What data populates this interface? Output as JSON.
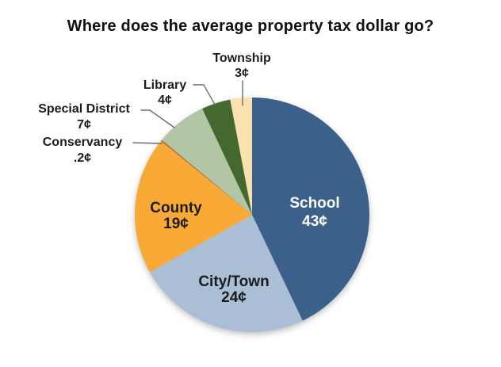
{
  "title": "Where does the average property tax dollar go?",
  "chart_data": {
    "type": "pie",
    "title": "Where does the average property tax dollar go?",
    "unit": "cents per property tax dollar",
    "start_angle_deg": 0,
    "direction": "clockwise",
    "legend_position": "none",
    "label_style": "direct labels; large slices labeled inside, small slices labeled outside with leader lines",
    "segments": [
      {
        "label": "School",
        "value": 43,
        "display": "43¢",
        "color": "#3A6189",
        "text_color": "#FFFFFF",
        "label_placement": "inside"
      },
      {
        "label": "City/Town",
        "value": 24,
        "display": "24¢",
        "color": "#AABFD5",
        "text_color": "#1C1C1C",
        "label_placement": "inside"
      },
      {
        "label": "County",
        "value": 19,
        "display": "19¢",
        "color": "#F9A934",
        "text_color": "#1C1C1C",
        "label_placement": "inside"
      },
      {
        "label": "Conservancy",
        "value": 0.2,
        "display": ".2¢",
        "color": "#AD6B3E",
        "text_color": "#1C1C1C",
        "label_placement": "outside"
      },
      {
        "label": "Special District",
        "value": 7,
        "display": "7¢",
        "color": "#B2C5A4",
        "text_color": "#1C1C1C",
        "label_placement": "outside"
      },
      {
        "label": "Library",
        "value": 4,
        "display": "4¢",
        "color": "#45682E",
        "text_color": "#1C1C1C",
        "label_placement": "outside"
      },
      {
        "label": "Township",
        "value": 3,
        "display": "3¢",
        "color": "#FAE2B0",
        "text_color": "#1C1C1C",
        "label_placement": "outside"
      }
    ],
    "colors": {
      "title_text": "#111111",
      "label_text": "#1C1C1C",
      "leader_line": "#6E6F72",
      "background": "#FFFFFF"
    }
  }
}
